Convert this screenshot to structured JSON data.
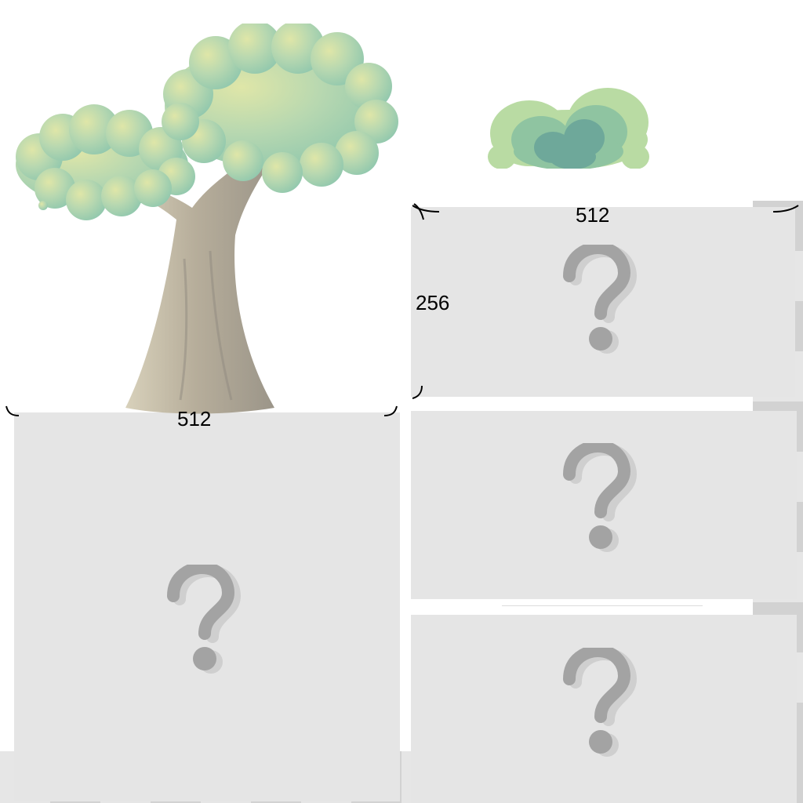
{
  "dimensions": {
    "large_width": "512",
    "tile_width": "512",
    "tile_height": "256"
  },
  "icons": {
    "placeholder": "question-mark-icon",
    "tree": "tree-icon",
    "bush": "bush-icon"
  },
  "colors": {
    "panel": "#e5e5e5",
    "checker_light": "#e6e6e6",
    "checker_dark": "#d2d2d2",
    "question_mark": "#a3a3a3",
    "foliage": "#9ecfb1",
    "trunk": "#b5ab98"
  }
}
